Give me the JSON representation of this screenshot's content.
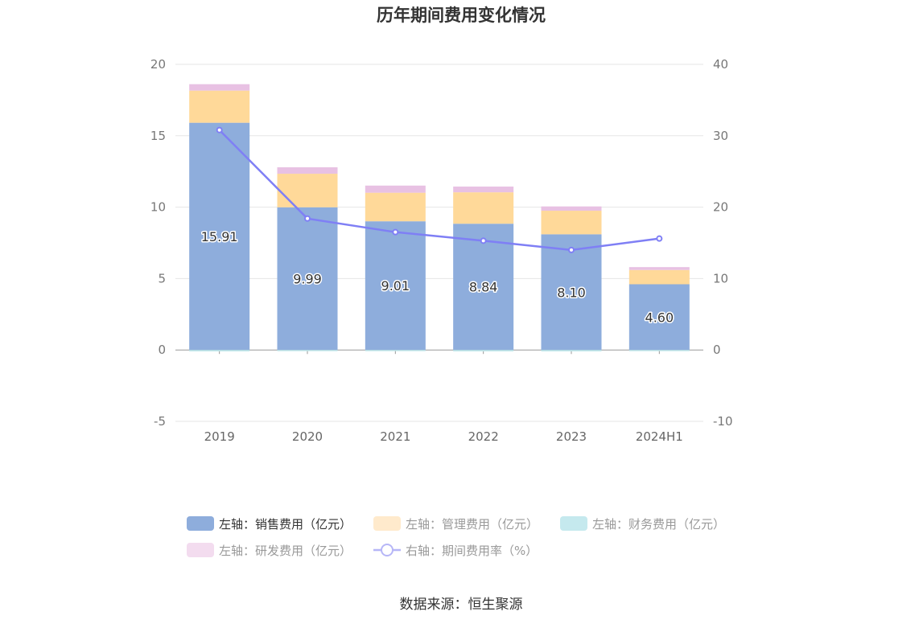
{
  "chart_data": {
    "type": "bar",
    "title": "历年期间费用变化情况",
    "categories": [
      "2019",
      "2020",
      "2021",
      "2022",
      "2023",
      "2024H1"
    ],
    "left_axis": {
      "ylim": [
        -5,
        20
      ],
      "ticks": [
        "20",
        "15",
        "10",
        "5",
        "0",
        "-5"
      ]
    },
    "right_axis": {
      "ylim": [
        -10,
        40
      ],
      "ticks": [
        "40",
        "30",
        "20",
        "10",
        "0",
        "-10"
      ]
    },
    "series": [
      {
        "name": "左轴：销售费用（亿元）",
        "color": "#8eaddc",
        "values": [
          15.91,
          9.99,
          9.01,
          8.84,
          8.1,
          4.6
        ],
        "labels": [
          "15.91",
          "9.99",
          "9.01",
          "8.84",
          "8.10",
          "4.60"
        ]
      },
      {
        "name": "左轴：管理费用（亿元）",
        "color": "#ffd999",
        "values": [
          2.25,
          2.35,
          2.0,
          2.2,
          1.65,
          1.0
        ]
      },
      {
        "name": "左轴：财务费用（亿元）",
        "color": "#bfe7ec",
        "values": [
          -0.1,
          -0.05,
          -0.05,
          -0.1,
          -0.1,
          -0.05
        ]
      },
      {
        "name": "左轴：研发费用（亿元）",
        "color": "#e8c1e3",
        "values": [
          0.45,
          0.45,
          0.5,
          0.4,
          0.3,
          0.2
        ]
      },
      {
        "name": "右轴：期间费用率（%）",
        "color": "#7f7ff5",
        "type": "line",
        "axis": "right",
        "values": [
          30.8,
          18.4,
          16.5,
          15.3,
          14.0,
          15.6
        ]
      }
    ],
    "grid": true,
    "legend_position": "bottom"
  },
  "source": "数据来源：恒生聚源"
}
